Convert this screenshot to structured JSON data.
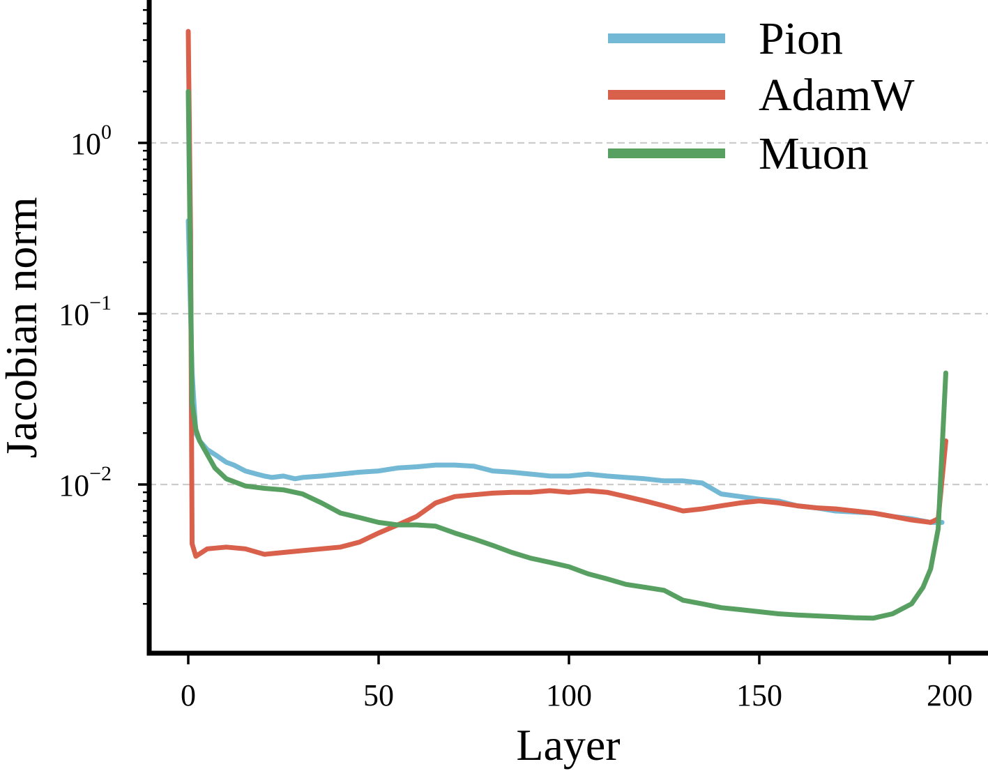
{
  "chart_data": {
    "type": "line",
    "title": "",
    "xlabel": "Layer",
    "ylabel": "Jacobian norm",
    "yscale": "log",
    "xlim": [
      -10,
      210
    ],
    "ylim": [
      0.00126,
      6.0
    ],
    "xticks": [
      0,
      50,
      100,
      150,
      200
    ],
    "xtick_labels": [
      "0",
      "50",
      "100",
      "150",
      "200"
    ],
    "yticks": [
      {
        "value": 1.0,
        "base": "10",
        "exp": "0"
      },
      {
        "value": 0.1,
        "base": "10",
        "exp": "−1"
      },
      {
        "value": 0.01,
        "base": "10",
        "exp": "−2"
      }
    ],
    "grid": "horizontal dashed at major y ticks",
    "legend_position": "top-right",
    "colors": {
      "Pion": "#73b9d5",
      "AdamW": "#d9604a",
      "Muon": "#58a062",
      "grid": "#cccccc"
    },
    "series": [
      {
        "name": "Pion",
        "color": "#73b9d5",
        "x": [
          0,
          1,
          2,
          3,
          5,
          7,
          10,
          12,
          15,
          18,
          20,
          22,
          25,
          28,
          30,
          35,
          40,
          45,
          50,
          55,
          60,
          65,
          70,
          75,
          80,
          85,
          90,
          95,
          100,
          105,
          110,
          115,
          120,
          125,
          130,
          135,
          140,
          145,
          150,
          155,
          160,
          165,
          170,
          175,
          180,
          185,
          190,
          195,
          198
        ],
        "y": [
          0.35,
          0.045,
          0.02,
          0.018,
          0.016,
          0.015,
          0.0135,
          0.013,
          0.012,
          0.0115,
          0.0112,
          0.011,
          0.0112,
          0.0108,
          0.011,
          0.0112,
          0.0115,
          0.0118,
          0.012,
          0.0125,
          0.0127,
          0.013,
          0.013,
          0.0128,
          0.012,
          0.0118,
          0.0115,
          0.0112,
          0.0112,
          0.0115,
          0.0112,
          0.011,
          0.0108,
          0.0105,
          0.0105,
          0.0102,
          0.0088,
          0.0085,
          0.0082,
          0.008,
          0.0075,
          0.0073,
          0.007,
          0.0069,
          0.0068,
          0.0065,
          0.0063,
          0.006,
          0.006
        ]
      },
      {
        "name": "AdamW",
        "color": "#d9604a",
        "x": [
          0,
          0.6,
          1,
          2,
          5,
          10,
          15,
          20,
          25,
          30,
          35,
          40,
          45,
          50,
          55,
          60,
          65,
          70,
          75,
          80,
          85,
          90,
          95,
          100,
          105,
          110,
          115,
          120,
          125,
          130,
          135,
          140,
          145,
          150,
          155,
          160,
          165,
          170,
          175,
          180,
          185,
          190,
          195,
          197,
          199
        ],
        "y": [
          4.5,
          0.3,
          0.0045,
          0.0038,
          0.0042,
          0.0043,
          0.0042,
          0.0039,
          0.004,
          0.0041,
          0.0042,
          0.0043,
          0.0046,
          0.0052,
          0.0058,
          0.0065,
          0.0078,
          0.0085,
          0.0087,
          0.0089,
          0.009,
          0.009,
          0.0092,
          0.009,
          0.0092,
          0.009,
          0.0085,
          0.008,
          0.0075,
          0.007,
          0.0072,
          0.0075,
          0.0078,
          0.008,
          0.0078,
          0.0075,
          0.0073,
          0.0072,
          0.007,
          0.0068,
          0.0065,
          0.0062,
          0.006,
          0.0063,
          0.018
        ]
      },
      {
        "name": "Muon",
        "color": "#58a062",
        "x": [
          0,
          1,
          2,
          3,
          5,
          7,
          10,
          15,
          20,
          25,
          30,
          35,
          40,
          45,
          50,
          55,
          60,
          65,
          70,
          75,
          80,
          85,
          90,
          95,
          100,
          105,
          110,
          115,
          120,
          125,
          130,
          135,
          140,
          145,
          150,
          155,
          160,
          165,
          170,
          175,
          180,
          185,
          190,
          193,
          195,
          197,
          199
        ],
        "y": [
          2.0,
          0.03,
          0.021,
          0.018,
          0.015,
          0.0125,
          0.0108,
          0.0098,
          0.0095,
          0.0093,
          0.0088,
          0.0078,
          0.0068,
          0.0064,
          0.006,
          0.0058,
          0.0058,
          0.0057,
          0.0052,
          0.0048,
          0.0044,
          0.004,
          0.0037,
          0.0035,
          0.0033,
          0.003,
          0.0028,
          0.0026,
          0.0025,
          0.0024,
          0.0021,
          0.002,
          0.0019,
          0.00185,
          0.0018,
          0.00175,
          0.00172,
          0.0017,
          0.00168,
          0.00166,
          0.00165,
          0.00175,
          0.002,
          0.0025,
          0.0032,
          0.0055,
          0.045
        ]
      }
    ]
  }
}
